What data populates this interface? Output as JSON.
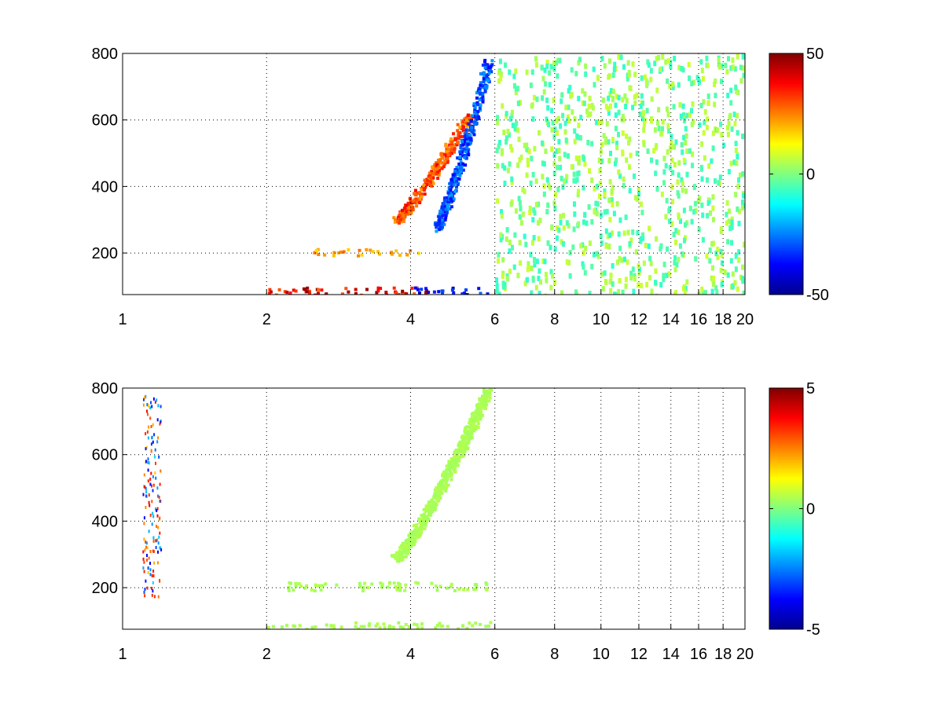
{
  "chart_data": [
    {
      "type": "heatmap",
      "title": "",
      "xlabel": "",
      "ylabel": "",
      "xlim": [
        1,
        20
      ],
      "ylim": [
        75,
        800
      ],
      "x_scale": "log",
      "x_ticks": [
        1,
        2,
        4,
        6,
        8,
        10,
        12,
        14,
        16,
        18,
        20
      ],
      "x_tick_labels": [
        "1",
        "2",
        "4",
        "6",
        "8",
        "10",
        "12",
        "14",
        "16",
        "18",
        "20"
      ],
      "y_ticks": [
        200,
        400,
        600,
        800
      ],
      "y_tick_labels": [
        "200",
        "400",
        "600",
        "800"
      ],
      "grid": true,
      "colormap": "jet",
      "colorbar": {
        "min": -50,
        "max": 50,
        "ticks": [
          50,
          0,
          -50
        ],
        "tick_labels": [
          "50",
          "0",
          "-50"
        ]
      },
      "features": [
        {
          "kind": "ridge",
          "sign": "positive",
          "value": 35,
          "x_range": [
            3.7,
            5.3
          ],
          "y_range": [
            300,
            620
          ]
        },
        {
          "kind": "ridge",
          "sign": "negative",
          "value": -35,
          "x_range": [
            4.5,
            5.8
          ],
          "y_range": [
            280,
            780
          ]
        },
        {
          "kind": "band",
          "sign": "positive",
          "value": 45,
          "x_range": [
            2.0,
            4.3
          ],
          "y_range": [
            75,
            100
          ]
        },
        {
          "kind": "band",
          "sign": "negative",
          "value": -45,
          "x_range": [
            4.0,
            5.8
          ],
          "y_range": [
            75,
            100
          ]
        },
        {
          "kind": "band",
          "sign": "positive",
          "value": 25,
          "x_range": [
            2.5,
            4.2
          ],
          "y_range": [
            195,
            215
          ]
        },
        {
          "kind": "noise",
          "sign": "mixed",
          "value": 8,
          "x_range": [
            6,
            20
          ],
          "y_range": [
            75,
            800
          ]
        }
      ]
    },
    {
      "type": "heatmap",
      "title": "",
      "xlabel": "",
      "ylabel": "",
      "xlim": [
        1,
        20
      ],
      "ylim": [
        75,
        800
      ],
      "x_scale": "log",
      "x_ticks": [
        1,
        2,
        4,
        6,
        8,
        10,
        12,
        14,
        16,
        18,
        20
      ],
      "x_tick_labels": [
        "1",
        "2",
        "4",
        "6",
        "8",
        "10",
        "12",
        "14",
        "16",
        "18",
        "20"
      ],
      "y_ticks": [
        200,
        400,
        600,
        800
      ],
      "y_tick_labels": [
        "200",
        "400",
        "600",
        "800"
      ],
      "grid": true,
      "colormap": "jet",
      "colorbar": {
        "min": -5,
        "max": 5,
        "ticks": [
          5,
          0,
          -5
        ],
        "tick_labels": [
          "5",
          "0",
          "-5"
        ]
      },
      "features": [
        {
          "kind": "ridge",
          "sign": "near-zero",
          "value": 0.5,
          "x_range": [
            3.7,
            5.8
          ],
          "y_range": [
            290,
            800
          ]
        },
        {
          "kind": "band",
          "sign": "near-zero",
          "value": 0.5,
          "x_range": [
            2.0,
            5.9
          ],
          "y_range": [
            75,
            100
          ]
        },
        {
          "kind": "band",
          "sign": "near-zero",
          "value": 0.5,
          "x_range": [
            2.2,
            5.8
          ],
          "y_range": [
            195,
            220
          ]
        },
        {
          "kind": "column",
          "sign": "mixed",
          "value": -4,
          "x_range": [
            1.1,
            1.2
          ],
          "y_range": [
            175,
            780
          ]
        }
      ]
    }
  ]
}
